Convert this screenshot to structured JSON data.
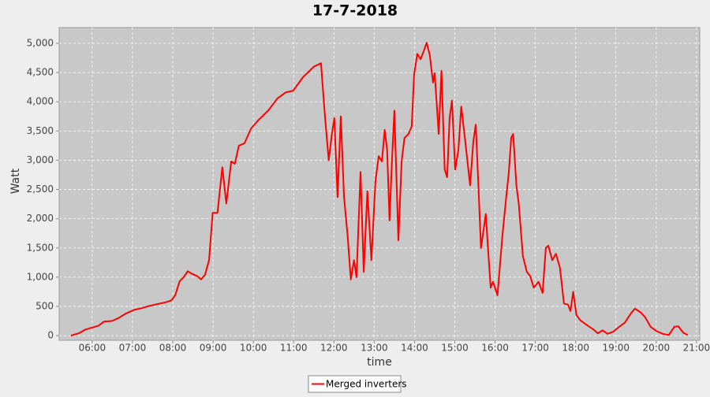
{
  "chart_data": {
    "type": "line",
    "title": "17-7-2018",
    "x_label": "time",
    "y_label": "Watt",
    "x": [
      5.47,
      5.67,
      5.82,
      5.96,
      6.16,
      6.29,
      6.49,
      6.65,
      6.84,
      7.04,
      7.23,
      7.43,
      7.63,
      7.82,
      7.96,
      8.06,
      8.17,
      8.27,
      8.37,
      8.47,
      8.6,
      8.7,
      8.8,
      8.9,
      8.99,
      9.11,
      9.23,
      9.33,
      9.45,
      9.54,
      9.64,
      9.78,
      9.94,
      10.13,
      10.37,
      10.6,
      10.8,
      10.99,
      11.23,
      11.5,
      11.68,
      11.78,
      11.87,
      11.95,
      12.01,
      12.09,
      12.17,
      12.25,
      12.34,
      12.42,
      12.5,
      12.56,
      12.66,
      12.74,
      12.83,
      12.93,
      13.03,
      13.11,
      13.19,
      13.26,
      13.32,
      13.38,
      13.44,
      13.5,
      13.6,
      13.68,
      13.75,
      13.85,
      13.93,
      13.99,
      14.07,
      14.15,
      14.23,
      14.3,
      14.38,
      14.46,
      14.5,
      14.6,
      14.67,
      14.75,
      14.81,
      14.87,
      14.93,
      15.01,
      15.09,
      15.16,
      15.26,
      15.38,
      15.46,
      15.52,
      15.59,
      15.65,
      15.71,
      15.77,
      15.83,
      15.89,
      15.95,
      16.06,
      16.18,
      16.28,
      16.34,
      16.4,
      16.45,
      16.53,
      16.59,
      16.69,
      16.79,
      16.87,
      16.96,
      17.08,
      17.18,
      17.26,
      17.32,
      17.42,
      17.51,
      17.61,
      17.71,
      17.81,
      17.87,
      17.94,
      18.02,
      18.12,
      18.28,
      18.43,
      18.55,
      18.67,
      18.79,
      18.94,
      19.08,
      19.22,
      19.37,
      19.47,
      19.61,
      19.72,
      19.86,
      20.0,
      20.16,
      20.31,
      20.45,
      20.55,
      20.67,
      20.78
    ],
    "series": [
      {
        "name": "Merged inverters",
        "color": "#ff0000",
        "values": [
          0,
          40,
          100,
          130,
          170,
          240,
          250,
          300,
          380,
          440,
          470,
          510,
          540,
          570,
          600,
          690,
          930,
          1000,
          1100,
          1060,
          1020,
          960,
          1040,
          1290,
          2100,
          2100,
          2880,
          2260,
          2980,
          2940,
          3250,
          3290,
          3540,
          3690,
          3850,
          4060,
          4160,
          4190,
          4420,
          4600,
          4660,
          3720,
          3000,
          3450,
          3720,
          2370,
          3750,
          2370,
          1700,
          960,
          1290,
          1000,
          2800,
          1090,
          2470,
          1290,
          2640,
          3070,
          2980,
          3520,
          3180,
          1970,
          2980,
          3850,
          1630,
          2980,
          3380,
          3450,
          3580,
          4460,
          4820,
          4730,
          4870,
          5010,
          4800,
          4330,
          4490,
          3450,
          4530,
          2840,
          2710,
          3720,
          4020,
          2840,
          3180,
          3920,
          3320,
          2570,
          3320,
          3610,
          2510,
          1500,
          1790,
          2080,
          1430,
          820,
          920,
          690,
          1700,
          2400,
          2780,
          3380,
          3450,
          2570,
          2240,
          1360,
          1090,
          1020,
          820,
          920,
          730,
          1500,
          1540,
          1290,
          1400,
          1160,
          550,
          530,
          420,
          750,
          350,
          260,
          180,
          110,
          40,
          90,
          30,
          70,
          150,
          220,
          380,
          460,
          400,
          320,
          150,
          80,
          30,
          10,
          150,
          160,
          50,
          10
        ]
      }
    ],
    "xlim": [
      5.18,
      21.08
    ],
    "xticks": [
      {
        "value": 6,
        "label": "06:00"
      },
      {
        "value": 7,
        "label": "07:00"
      },
      {
        "value": 8,
        "label": "08:00"
      },
      {
        "value": 9,
        "label": "09:00"
      },
      {
        "value": 10,
        "label": "10:00"
      },
      {
        "value": 11,
        "label": "11:00"
      },
      {
        "value": 12,
        "label": "12:00"
      },
      {
        "value": 13,
        "label": "13:00"
      },
      {
        "value": 14,
        "label": "14:00"
      },
      {
        "value": 15,
        "label": "15:00"
      },
      {
        "value": 16,
        "label": "16:00"
      },
      {
        "value": 17,
        "label": "17:00"
      },
      {
        "value": 18,
        "label": "18:00"
      },
      {
        "value": 19,
        "label": "19:00"
      },
      {
        "value": 20,
        "label": "20:00"
      },
      {
        "value": 21,
        "label": "21:00"
      }
    ],
    "ylim": [
      -80,
      5270
    ],
    "yticks": [
      0,
      500,
      {
        "value": 1000,
        "label": "1,000"
      },
      {
        "value": 1500,
        "label": "1,500"
      },
      {
        "value": 2000,
        "label": "2,000"
      },
      {
        "value": 2500,
        "label": "2,500"
      },
      {
        "value": 3000,
        "label": "3,000"
      },
      {
        "value": 3500,
        "label": "3,500"
      },
      {
        "value": 4000,
        "label": "4,000"
      },
      {
        "value": 4500,
        "label": "4,500"
      },
      {
        "value": 5000,
        "label": "5,000"
      }
    ],
    "grid": true,
    "legend": "bottom"
  }
}
